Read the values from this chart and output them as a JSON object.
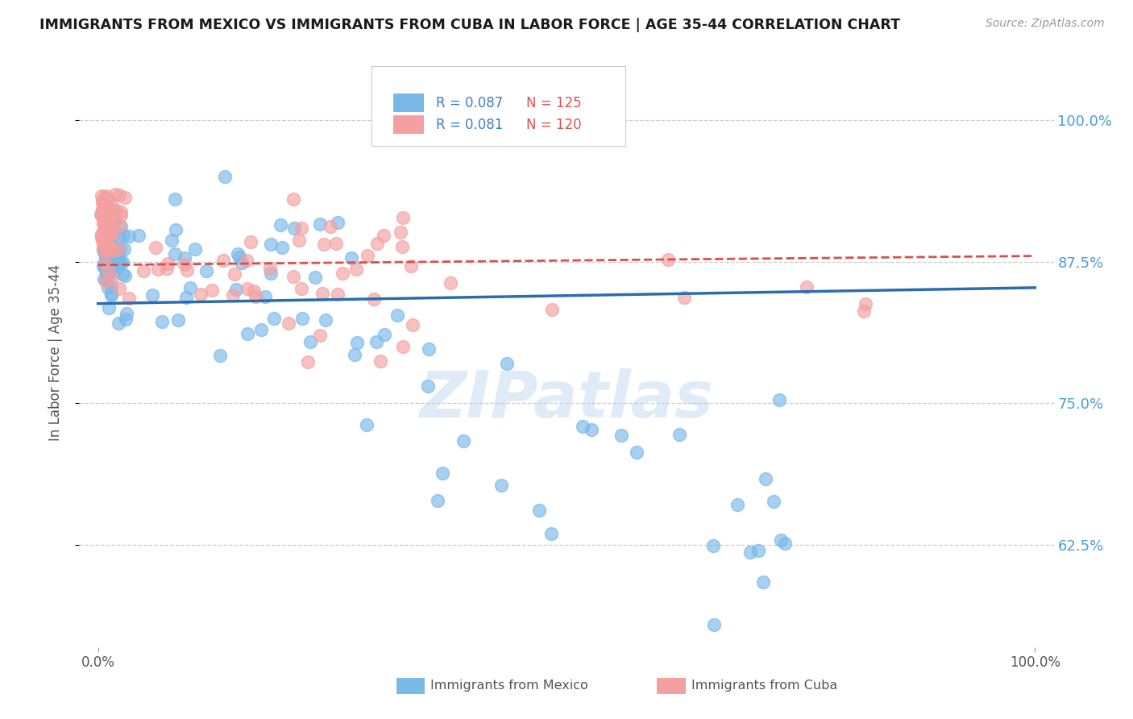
{
  "title": "IMMIGRANTS FROM MEXICO VS IMMIGRANTS FROM CUBA IN LABOR FORCE | AGE 35-44 CORRELATION CHART",
  "source": "Source: ZipAtlas.com",
  "ylabel": "In Labor Force | Age 35-44",
  "xlim": [
    -0.02,
    1.02
  ],
  "ylim": [
    0.535,
    1.055
  ],
  "yticks": [
    0.625,
    0.75,
    0.875,
    1.0
  ],
  "ytick_labels": [
    "62.5%",
    "75.0%",
    "87.5%",
    "100.0%"
  ],
  "xticks": [
    0.0,
    1.0
  ],
  "xtick_labels": [
    "0.0%",
    "100.0%"
  ],
  "legend_labels": [
    "Immigrants from Mexico",
    "Immigrants from Cuba"
  ],
  "mexico_R": 0.087,
  "mexico_N": 125,
  "cuba_R": 0.081,
  "cuba_N": 120,
  "mexico_color": "#7ab8e8",
  "cuba_color": "#f4a0a0",
  "mexico_line_color": "#2b6cb0",
  "cuba_line_color": "#d94f4f",
  "background_color": "#ffffff",
  "grid_color": "#c8c8c8",
  "watermark": "ZIPatlas",
  "title_color": "#1a1a1a",
  "label_color": "#555555",
  "tick_color": "#4a9fd4",
  "legend_R_color": "#3a7fc1",
  "legend_N_color": "#e05050"
}
